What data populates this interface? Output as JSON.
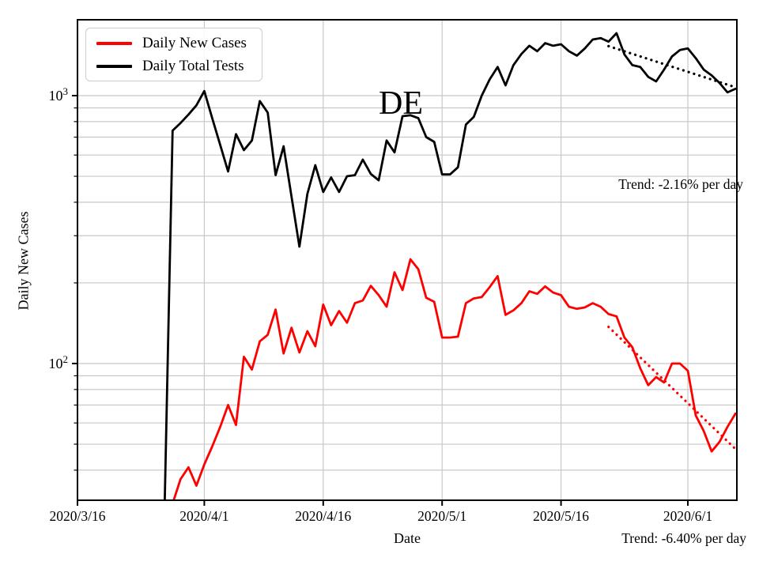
{
  "chart_data": {
    "type": "line",
    "title": "",
    "country_label": "DE",
    "xlabel": "Date",
    "ylabel": "Daily New Cases",
    "x_axis": {
      "tick_labels": [
        "2020/3/16",
        "2020/4/1",
        "2020/4/16",
        "2020/5/1",
        "2020/5/16",
        "2020/6/1"
      ],
      "start_date": "2020/3/16",
      "end_date": "2020/6/8"
    },
    "y_axis": {
      "scale": "log",
      "range": [
        31,
        1920
      ],
      "ticks": [
        {
          "base": "10",
          "exp": "2",
          "value": 100
        },
        {
          "base": "10",
          "exp": "3",
          "value": 1000
        }
      ],
      "grid": true
    },
    "legend": {
      "position": "upper-left",
      "entries": [
        {
          "label": "Daily New Cases",
          "color": "#ff0000"
        },
        {
          "label": "Daily Total Tests",
          "color": "#000000"
        }
      ]
    },
    "series": [
      {
        "name": "Daily New Cases",
        "color": "#ff0000",
        "style": "solid",
        "points": [
          [
            "2020/3/28",
            30
          ],
          [
            "2020/3/29",
            37
          ],
          [
            "2020/3/30",
            41
          ],
          [
            "2020/3/31",
            35
          ],
          [
            "2020/4/1",
            42
          ],
          [
            "2020/4/2",
            49
          ],
          [
            "2020/4/3",
            58
          ],
          [
            "2020/4/4",
            70
          ],
          [
            "2020/4/5",
            59
          ],
          [
            "2020/4/6",
            106
          ],
          [
            "2020/4/7",
            95
          ],
          [
            "2020/4/8",
            121
          ],
          [
            "2020/4/9",
            128
          ],
          [
            "2020/4/10",
            159
          ],
          [
            "2020/4/11",
            109
          ],
          [
            "2020/4/12",
            136
          ],
          [
            "2020/4/13",
            110
          ],
          [
            "2020/4/14",
            132
          ],
          [
            "2020/4/15",
            116
          ],
          [
            "2020/4/16",
            166
          ],
          [
            "2020/4/17",
            139
          ],
          [
            "2020/4/18",
            157
          ],
          [
            "2020/4/19",
            142
          ],
          [
            "2020/4/20",
            168
          ],
          [
            "2020/4/21",
            172
          ],
          [
            "2020/4/22",
            195
          ],
          [
            "2020/4/23",
            180
          ],
          [
            "2020/4/24",
            163
          ],
          [
            "2020/4/25",
            219
          ],
          [
            "2020/4/26",
            188
          ],
          [
            "2020/4/27",
            245
          ],
          [
            "2020/4/28",
            225
          ],
          [
            "2020/4/29",
            176
          ],
          [
            "2020/4/30",
            170
          ],
          [
            "2020/5/1",
            125
          ],
          [
            "2020/5/2",
            125
          ],
          [
            "2020/5/3",
            126
          ],
          [
            "2020/5/4",
            168
          ],
          [
            "2020/5/5",
            175
          ],
          [
            "2020/5/6",
            177
          ],
          [
            "2020/5/7",
            193
          ],
          [
            "2020/5/8",
            212
          ],
          [
            "2020/5/9",
            152
          ],
          [
            "2020/5/10",
            158
          ],
          [
            "2020/5/11",
            168
          ],
          [
            "2020/5/12",
            186
          ],
          [
            "2020/5/13",
            182
          ],
          [
            "2020/5/14",
            194
          ],
          [
            "2020/5/15",
            184
          ],
          [
            "2020/5/16",
            180
          ],
          [
            "2020/5/17",
            163
          ],
          [
            "2020/5/18",
            160
          ],
          [
            "2020/5/19",
            162
          ],
          [
            "2020/5/20",
            168
          ],
          [
            "2020/5/21",
            163
          ],
          [
            "2020/5/22",
            153
          ],
          [
            "2020/5/23",
            150
          ],
          [
            "2020/5/24",
            125
          ],
          [
            "2020/5/25",
            115
          ],
          [
            "2020/5/26",
            96
          ],
          [
            "2020/5/27",
            83
          ],
          [
            "2020/5/28",
            89
          ],
          [
            "2020/5/29",
            85
          ],
          [
            "2020/5/30",
            100
          ],
          [
            "2020/5/31",
            100
          ],
          [
            "2020/6/1",
            94
          ],
          [
            "2020/6/2",
            64
          ],
          [
            "2020/6/3",
            56
          ],
          [
            "2020/6/4",
            47
          ],
          [
            "2020/6/5",
            51
          ],
          [
            "2020/6/6",
            58
          ],
          [
            "2020/6/7",
            65
          ]
        ]
      },
      {
        "name": "Daily Total Tests",
        "color": "#000000",
        "style": "solid",
        "points": [
          [
            "2020/3/27",
            30
          ],
          [
            "2020/3/28",
            740
          ],
          [
            "2020/3/29",
            790
          ],
          [
            "2020/3/30",
            850
          ],
          [
            "2020/3/31",
            920
          ],
          [
            "2020/4/1",
            1040
          ],
          [
            "2020/4/2",
            824
          ],
          [
            "2020/4/3",
            655
          ],
          [
            "2020/4/4",
            521
          ],
          [
            "2020/4/5",
            718
          ],
          [
            "2020/4/6",
            626
          ],
          [
            "2020/4/7",
            680
          ],
          [
            "2020/4/8",
            954
          ],
          [
            "2020/4/9",
            865
          ],
          [
            "2020/4/10",
            505
          ],
          [
            "2020/4/11",
            647
          ],
          [
            "2020/4/12",
            420
          ],
          [
            "2020/4/13",
            273
          ],
          [
            "2020/4/14",
            430
          ],
          [
            "2020/4/15",
            550
          ],
          [
            "2020/4/16",
            437
          ],
          [
            "2020/4/17",
            495
          ],
          [
            "2020/4/18",
            437
          ],
          [
            "2020/4/19",
            500
          ],
          [
            "2020/4/20",
            505
          ],
          [
            "2020/4/21",
            577
          ],
          [
            "2020/4/22",
            510
          ],
          [
            "2020/4/23",
            483
          ],
          [
            "2020/4/24",
            680
          ],
          [
            "2020/4/25",
            614
          ],
          [
            "2020/4/26",
            838
          ],
          [
            "2020/4/27",
            845
          ],
          [
            "2020/4/28",
            824
          ],
          [
            "2020/4/29",
            700
          ],
          [
            "2020/4/30",
            672
          ],
          [
            "2020/5/1",
            508
          ],
          [
            "2020/5/2",
            508
          ],
          [
            "2020/5/3",
            540
          ],
          [
            "2020/5/4",
            780
          ],
          [
            "2020/5/5",
            833
          ],
          [
            "2020/5/6",
            1000
          ],
          [
            "2020/5/7",
            1150
          ],
          [
            "2020/5/8",
            1280
          ],
          [
            "2020/5/9",
            1092
          ],
          [
            "2020/5/10",
            1300
          ],
          [
            "2020/5/11",
            1430
          ],
          [
            "2020/5/12",
            1535
          ],
          [
            "2020/5/13",
            1465
          ],
          [
            "2020/5/14",
            1570
          ],
          [
            "2020/5/15",
            1535
          ],
          [
            "2020/5/16",
            1555
          ],
          [
            "2020/5/17",
            1465
          ],
          [
            "2020/5/18",
            1410
          ],
          [
            "2020/5/19",
            1500
          ],
          [
            "2020/5/20",
            1620
          ],
          [
            "2020/5/21",
            1640
          ],
          [
            "2020/5/22",
            1590
          ],
          [
            "2020/5/23",
            1710
          ],
          [
            "2020/5/24",
            1425
          ],
          [
            "2020/5/25",
            1300
          ],
          [
            "2020/5/26",
            1280
          ],
          [
            "2020/5/27",
            1175
          ],
          [
            "2020/5/28",
            1130
          ],
          [
            "2020/5/29",
            1250
          ],
          [
            "2020/5/30",
            1400
          ],
          [
            "2020/5/31",
            1480
          ],
          [
            "2020/6/1",
            1500
          ],
          [
            "2020/6/2",
            1380
          ],
          [
            "2020/6/3",
            1250
          ],
          [
            "2020/6/4",
            1190
          ],
          [
            "2020/6/5",
            1115
          ],
          [
            "2020/6/6",
            1028
          ],
          [
            "2020/6/7",
            1060
          ]
        ]
      }
    ],
    "trend_lines": [
      {
        "series": "Daily New Cases",
        "label": "Trend: -6.40% per day",
        "rate_pct_per_day": -6.4,
        "color": "#ff0000",
        "style": "dotted",
        "points": [
          [
            "2020/5/22",
            137
          ],
          [
            "2020/6/7",
            48
          ]
        ]
      },
      {
        "series": "Daily Total Tests",
        "label": "Trend: -2.16% per day",
        "rate_pct_per_day": -2.16,
        "color": "#000000",
        "style": "dotted",
        "points": [
          [
            "2020/5/22",
            1530
          ],
          [
            "2020/6/7",
            1075
          ]
        ]
      }
    ]
  }
}
